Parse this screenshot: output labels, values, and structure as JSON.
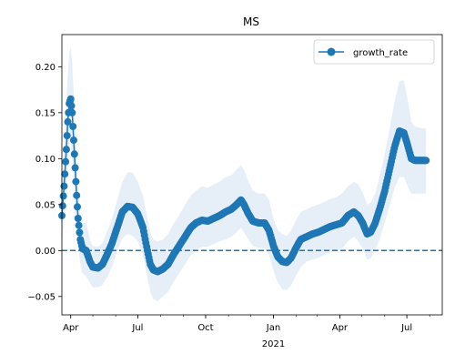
{
  "colors": {
    "line": "#1f77b4",
    "band": "#dce8f4",
    "zero_line": "#1f77b4",
    "axis": "#000000",
    "background": "#ffffff"
  },
  "chart_data": {
    "type": "line",
    "title": "MS",
    "xlabel": "",
    "ylabel": "",
    "x_start": "2020-03-20",
    "x_end": "2021-08-18",
    "ylim": [
      -0.07,
      0.235
    ],
    "y_ticks": [
      -0.05,
      0.0,
      0.05,
      0.1,
      0.15,
      0.2
    ],
    "y_tick_labels": [
      "−0.05",
      "0.00",
      "0.05",
      "0.10",
      "0.15",
      "0.20"
    ],
    "x_ticks": [
      {
        "date": "2020-04-01",
        "label": "Apr"
      },
      {
        "date": "2020-07-01",
        "label": "Jul"
      },
      {
        "date": "2020-10-01",
        "label": "Oct"
      },
      {
        "date": "2021-01-01",
        "label": "Jan",
        "sublabel": "2021"
      },
      {
        "date": "2021-04-01",
        "label": "Apr"
      },
      {
        "date": "2021-07-01",
        "label": "Jul"
      }
    ],
    "legend": {
      "placement": "top-right",
      "entries": [
        "growth_rate"
      ]
    },
    "reference_line": {
      "y": 0.0,
      "style": "dashed"
    },
    "series": [
      {
        "name": "growth_rate",
        "marker": "circle",
        "points": [
          {
            "x": "2020-03-20",
            "y": 0.038,
            "lo": 0.01,
            "hi": 0.07
          },
          {
            "x": "2020-03-23",
            "y": 0.07,
            "lo": 0.03,
            "hi": 0.11
          },
          {
            "x": "2020-03-26",
            "y": 0.11,
            "lo": 0.06,
            "hi": 0.16
          },
          {
            "x": "2020-03-28",
            "y": 0.14,
            "lo": 0.09,
            "hi": 0.19
          },
          {
            "x": "2020-03-30",
            "y": 0.16,
            "lo": 0.11,
            "hi": 0.215
          },
          {
            "x": "2020-04-01",
            "y": 0.165,
            "lo": 0.12,
            "hi": 0.222
          },
          {
            "x": "2020-04-03",
            "y": 0.15,
            "lo": 0.1,
            "hi": 0.205
          },
          {
            "x": "2020-04-05",
            "y": 0.12,
            "lo": 0.075,
            "hi": 0.17
          },
          {
            "x": "2020-04-07",
            "y": 0.09,
            "lo": 0.05,
            "hi": 0.135
          },
          {
            "x": "2020-04-09",
            "y": 0.06,
            "lo": 0.025,
            "hi": 0.1
          },
          {
            "x": "2020-04-11",
            "y": 0.035,
            "lo": 0.005,
            "hi": 0.07
          },
          {
            "x": "2020-04-14",
            "y": 0.012,
            "lo": -0.015,
            "hi": 0.04
          },
          {
            "x": "2020-04-17",
            "y": 0.002,
            "lo": -0.025,
            "hi": 0.03
          },
          {
            "x": "2020-04-22",
            "y": 0.0,
            "lo": -0.028,
            "hi": 0.03
          },
          {
            "x": "2020-04-27",
            "y": -0.012,
            "lo": -0.035,
            "hi": 0.012
          },
          {
            "x": "2020-05-01",
            "y": -0.018,
            "lo": -0.04,
            "hi": 0.005
          },
          {
            "x": "2020-05-08",
            "y": -0.019,
            "lo": -0.04,
            "hi": 0.004
          },
          {
            "x": "2020-05-14",
            "y": -0.015,
            "lo": -0.037,
            "hi": 0.008
          },
          {
            "x": "2020-05-20",
            "y": -0.005,
            "lo": -0.03,
            "hi": 0.02
          },
          {
            "x": "2020-05-27",
            "y": 0.008,
            "lo": -0.018,
            "hi": 0.035
          },
          {
            "x": "2020-06-03",
            "y": 0.025,
            "lo": 0.0,
            "hi": 0.055
          },
          {
            "x": "2020-06-10",
            "y": 0.042,
            "lo": 0.013,
            "hi": 0.075
          },
          {
            "x": "2020-06-17",
            "y": 0.048,
            "lo": 0.018,
            "hi": 0.085
          },
          {
            "x": "2020-06-24",
            "y": 0.047,
            "lo": 0.016,
            "hi": 0.085
          },
          {
            "x": "2020-07-01",
            "y": 0.04,
            "lo": 0.01,
            "hi": 0.075
          },
          {
            "x": "2020-07-08",
            "y": 0.025,
            "lo": -0.005,
            "hi": 0.06
          },
          {
            "x": "2020-07-14",
            "y": 0.0,
            "lo": -0.03,
            "hi": 0.035
          },
          {
            "x": "2020-07-18",
            "y": -0.015,
            "lo": -0.045,
            "hi": 0.02
          },
          {
            "x": "2020-07-22",
            "y": -0.021,
            "lo": -0.053,
            "hi": 0.012
          },
          {
            "x": "2020-07-28",
            "y": -0.023,
            "lo": -0.055,
            "hi": 0.01
          },
          {
            "x": "2020-08-04",
            "y": -0.02,
            "lo": -0.05,
            "hi": 0.012
          },
          {
            "x": "2020-08-11",
            "y": -0.015,
            "lo": -0.045,
            "hi": 0.018
          },
          {
            "x": "2020-08-18",
            "y": -0.005,
            "lo": -0.035,
            "hi": 0.028
          },
          {
            "x": "2020-08-26",
            "y": 0.005,
            "lo": -0.025,
            "hi": 0.038
          },
          {
            "x": "2020-09-03",
            "y": 0.015,
            "lo": -0.015,
            "hi": 0.05
          },
          {
            "x": "2020-09-11",
            "y": 0.025,
            "lo": -0.005,
            "hi": 0.06
          },
          {
            "x": "2020-09-18",
            "y": 0.03,
            "lo": 0.0,
            "hi": 0.065
          },
          {
            "x": "2020-09-26",
            "y": 0.033,
            "lo": 0.004,
            "hi": 0.07
          },
          {
            "x": "2020-10-04",
            "y": 0.032,
            "lo": 0.004,
            "hi": 0.068
          },
          {
            "x": "2020-10-12",
            "y": 0.035,
            "lo": 0.007,
            "hi": 0.072
          },
          {
            "x": "2020-10-20",
            "y": 0.038,
            "lo": 0.01,
            "hi": 0.075
          },
          {
            "x": "2020-10-28",
            "y": 0.042,
            "lo": 0.012,
            "hi": 0.08
          },
          {
            "x": "2020-11-05",
            "y": 0.045,
            "lo": 0.015,
            "hi": 0.082
          },
          {
            "x": "2020-11-12",
            "y": 0.05,
            "lo": 0.02,
            "hi": 0.088
          },
          {
            "x": "2020-11-18",
            "y": 0.055,
            "lo": 0.025,
            "hi": 0.093
          },
          {
            "x": "2020-11-22",
            "y": 0.05,
            "lo": 0.02,
            "hi": 0.088
          },
          {
            "x": "2020-11-28",
            "y": 0.04,
            "lo": 0.012,
            "hi": 0.075
          },
          {
            "x": "2020-12-04",
            "y": 0.032,
            "lo": 0.005,
            "hi": 0.065
          },
          {
            "x": "2020-12-12",
            "y": 0.03,
            "lo": 0.003,
            "hi": 0.062
          },
          {
            "x": "2020-12-20",
            "y": 0.03,
            "lo": 0.002,
            "hi": 0.062
          },
          {
            "x": "2020-12-26",
            "y": 0.022,
            "lo": -0.005,
            "hi": 0.055
          },
          {
            "x": "2021-01-01",
            "y": 0.005,
            "lo": -0.022,
            "hi": 0.035
          },
          {
            "x": "2021-01-07",
            "y": -0.007,
            "lo": -0.035,
            "hi": 0.022
          },
          {
            "x": "2021-01-13",
            "y": -0.012,
            "lo": -0.042,
            "hi": 0.018
          },
          {
            "x": "2021-01-19",
            "y": -0.013,
            "lo": -0.043,
            "hi": 0.016
          },
          {
            "x": "2021-01-25",
            "y": -0.008,
            "lo": -0.038,
            "hi": 0.022
          },
          {
            "x": "2021-01-31",
            "y": 0.002,
            "lo": -0.028,
            "hi": 0.032
          },
          {
            "x": "2021-02-07",
            "y": 0.012,
            "lo": -0.018,
            "hi": 0.042
          },
          {
            "x": "2021-02-15",
            "y": 0.015,
            "lo": -0.012,
            "hi": 0.045
          },
          {
            "x": "2021-02-23",
            "y": 0.018,
            "lo": -0.01,
            "hi": 0.048
          },
          {
            "x": "2021-03-03",
            "y": 0.02,
            "lo": -0.008,
            "hi": 0.05
          },
          {
            "x": "2021-03-11",
            "y": 0.023,
            "lo": -0.005,
            "hi": 0.053
          },
          {
            "x": "2021-03-19",
            "y": 0.026,
            "lo": -0.002,
            "hi": 0.056
          },
          {
            "x": "2021-03-27",
            "y": 0.028,
            "lo": 0.0,
            "hi": 0.058
          },
          {
            "x": "2021-04-04",
            "y": 0.03,
            "lo": 0.002,
            "hi": 0.062
          },
          {
            "x": "2021-04-12",
            "y": 0.038,
            "lo": 0.01,
            "hi": 0.07
          },
          {
            "x": "2021-04-20",
            "y": 0.042,
            "lo": 0.015,
            "hi": 0.075
          },
          {
            "x": "2021-04-26",
            "y": 0.038,
            "lo": 0.01,
            "hi": 0.072
          },
          {
            "x": "2021-05-02",
            "y": 0.03,
            "lo": 0.002,
            "hi": 0.063
          },
          {
            "x": "2021-05-08",
            "y": 0.018,
            "lo": -0.01,
            "hi": 0.05
          },
          {
            "x": "2021-05-13",
            "y": 0.02,
            "lo": -0.008,
            "hi": 0.052
          },
          {
            "x": "2021-05-19",
            "y": 0.03,
            "lo": 0.0,
            "hi": 0.062
          },
          {
            "x": "2021-05-25",
            "y": 0.045,
            "lo": 0.012,
            "hi": 0.08
          },
          {
            "x": "2021-06-01",
            "y": 0.065,
            "lo": 0.03,
            "hi": 0.105
          },
          {
            "x": "2021-06-08",
            "y": 0.09,
            "lo": 0.05,
            "hi": 0.135
          },
          {
            "x": "2021-06-15",
            "y": 0.115,
            "lo": 0.07,
            "hi": 0.165
          },
          {
            "x": "2021-06-21",
            "y": 0.13,
            "lo": 0.08,
            "hi": 0.185
          },
          {
            "x": "2021-06-27",
            "y": 0.128,
            "lo": 0.08,
            "hi": 0.185
          },
          {
            "x": "2021-07-02",
            "y": 0.115,
            "lo": 0.07,
            "hi": 0.165
          },
          {
            "x": "2021-07-07",
            "y": 0.1,
            "lo": 0.062,
            "hi": 0.14
          },
          {
            "x": "2021-07-12",
            "y": 0.098,
            "lo": 0.062,
            "hi": 0.135
          },
          {
            "x": "2021-07-20",
            "y": 0.098,
            "lo": 0.062,
            "hi": 0.133
          },
          {
            "x": "2021-07-27",
            "y": 0.098,
            "lo": 0.062,
            "hi": 0.133
          }
        ]
      }
    ]
  }
}
